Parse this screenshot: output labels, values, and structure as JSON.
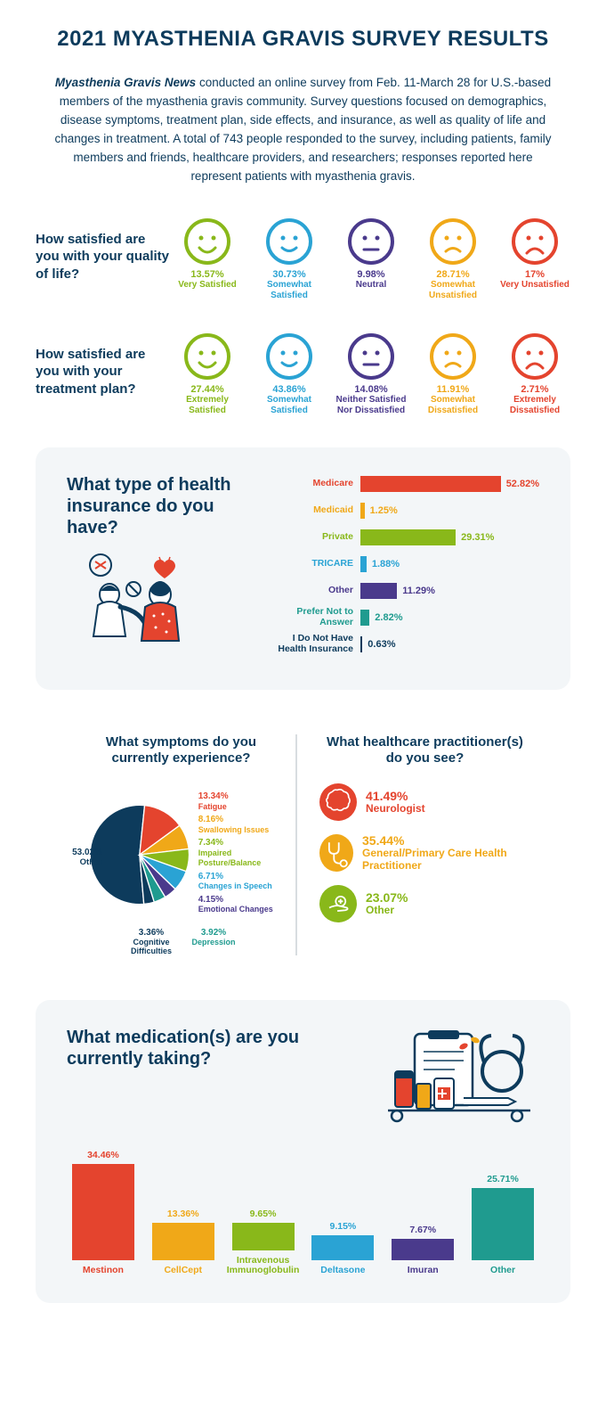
{
  "title": "2021 MYASTHENIA GRAVIS SURVEY RESULTS",
  "intro_prefix": "Myasthenia Gravis News",
  "intro_body": " conducted an online survey from Feb. 11-March 28 for U.S.-based members of the myasthenia gravis community. Survey questions focused on demographics, disease symptoms, treatment plan, side effects, and insurance, as well as quality of life and changes in treatment. A total of 743 people responded to the survey, including patients, family members and friends, healthcare providers, and researchers; responses reported here represent patients with myasthenia gravis.",
  "colors": {
    "navy": "#0d3b5c",
    "green": "#89b81a",
    "blue": "#2aa3d4",
    "purple": "#4a3a8c",
    "orange": "#f0a818",
    "red": "#e4442e",
    "teal": "#1f9b8f",
    "card_bg": "#f3f6f8"
  },
  "qol": {
    "question": "How satisfied are you with your quality of life?",
    "items": [
      {
        "pct": "13.57%",
        "label": "Very Satisfied",
        "mood": "very-happy",
        "color": "#89b81a"
      },
      {
        "pct": "30.73%",
        "label": "Somewhat Satisfied",
        "mood": "happy",
        "color": "#2aa3d4"
      },
      {
        "pct": "9.98%",
        "label": "Neutral",
        "mood": "neutral",
        "color": "#4a3a8c"
      },
      {
        "pct": "28.71%",
        "label": "Somewhat Unsatisfied",
        "mood": "sad",
        "color": "#f0a818"
      },
      {
        "pct": "17%",
        "label": "Very Unsatisfied",
        "mood": "very-sad",
        "color": "#e4442e"
      }
    ]
  },
  "treatment": {
    "question": "How satisfied are you with your treatment plan?",
    "items": [
      {
        "pct": "27.44%",
        "label": "Extremely Satisfied",
        "mood": "very-happy",
        "color": "#89b81a"
      },
      {
        "pct": "43.86%",
        "label": "Somewhat Satisfied",
        "mood": "happy",
        "color": "#2aa3d4"
      },
      {
        "pct": "14.08%",
        "label": "Neither Satisfied Nor Dissatisfied",
        "mood": "neutral",
        "color": "#4a3a8c"
      },
      {
        "pct": "11.91%",
        "label": "Somewhat Dissatisfied",
        "mood": "sad",
        "color": "#f0a818"
      },
      {
        "pct": "2.71%",
        "label": "Extremely Dissatisfied",
        "mood": "very-sad",
        "color": "#e4442e"
      }
    ]
  },
  "insurance": {
    "title": "What type of health insurance do you have?",
    "max_pct": 55,
    "items": [
      {
        "label": "Medicare",
        "pct": "52.82%",
        "val": 52.82,
        "color": "#e4442e"
      },
      {
        "label": "Medicaid",
        "pct": "1.25%",
        "val": 1.25,
        "color": "#f0a818"
      },
      {
        "label": "Private",
        "pct": "29.31%",
        "val": 29.31,
        "color": "#89b81a"
      },
      {
        "label": "TRICARE",
        "pct": "1.88%",
        "val": 1.88,
        "color": "#2aa3d4"
      },
      {
        "label": "Other",
        "pct": "11.29%",
        "val": 11.29,
        "color": "#4a3a8c"
      },
      {
        "label": "Prefer Not to Answer",
        "pct": "2.82%",
        "val": 2.82,
        "color": "#1f9b8f"
      },
      {
        "label": "I Do Not Have Health Insurance",
        "pct": "0.63%",
        "val": 0.63,
        "color": "#0d3b5c"
      }
    ]
  },
  "symptoms": {
    "title": "What symptoms do you currently experience?",
    "slices": [
      {
        "label": "Other",
        "pct": "53.02%",
        "val": 53.02,
        "color": "#0d3b5c"
      },
      {
        "label": "Fatigue",
        "pct": "13.34%",
        "val": 13.34,
        "color": "#e4442e"
      },
      {
        "label": "Swallowing Issues",
        "pct": "8.16%",
        "val": 8.16,
        "color": "#f0a818"
      },
      {
        "label": "Impaired Posture/Balance",
        "pct": "7.34%",
        "val": 7.34,
        "color": "#89b81a"
      },
      {
        "label": "Changes in Speech",
        "pct": "6.71%",
        "val": 6.71,
        "color": "#2aa3d4"
      },
      {
        "label": "Emotional Changes",
        "pct": "4.15%",
        "val": 4.15,
        "color": "#4a3a8c"
      },
      {
        "label": "Depression",
        "pct": "3.92%",
        "val": 3.92,
        "color": "#1f9b8f"
      },
      {
        "label": "Cognitive Difficulties",
        "pct": "3.36%",
        "val": 3.36,
        "color": "#0d3b5c"
      }
    ]
  },
  "practitioners": {
    "title": "What healthcare practitioner(s) do you see?",
    "items": [
      {
        "pct": "41.49%",
        "label": "Neurologist",
        "color": "#e4442e",
        "icon": "brain"
      },
      {
        "pct": "35.44%",
        "label": "General/Primary Care Health Practitioner",
        "color": "#f0a818",
        "icon": "stethoscope"
      },
      {
        "pct": "23.07%",
        "label": "Other",
        "color": "#89b81a",
        "icon": "hand-plus"
      }
    ]
  },
  "medications": {
    "title": "What medication(s) are you currently taking?",
    "max_pct": 38,
    "items": [
      {
        "label": "Mestinon",
        "pct": "34.46%",
        "val": 34.46,
        "color": "#e4442e"
      },
      {
        "label": "CellCept",
        "pct": "13.36%",
        "val": 13.36,
        "color": "#f0a818"
      },
      {
        "label": "Intravenous Immunoglobulin",
        "pct": "9.65%",
        "val": 9.65,
        "color": "#89b81a"
      },
      {
        "label": "Deltasone",
        "pct": "9.15%",
        "val": 9.15,
        "color": "#2aa3d4"
      },
      {
        "label": "Imuran",
        "pct": "7.67%",
        "val": 7.67,
        "color": "#4a3a8c"
      },
      {
        "label": "Other",
        "pct": "25.71%",
        "val": 25.71,
        "color": "#1f9b8f"
      }
    ]
  }
}
